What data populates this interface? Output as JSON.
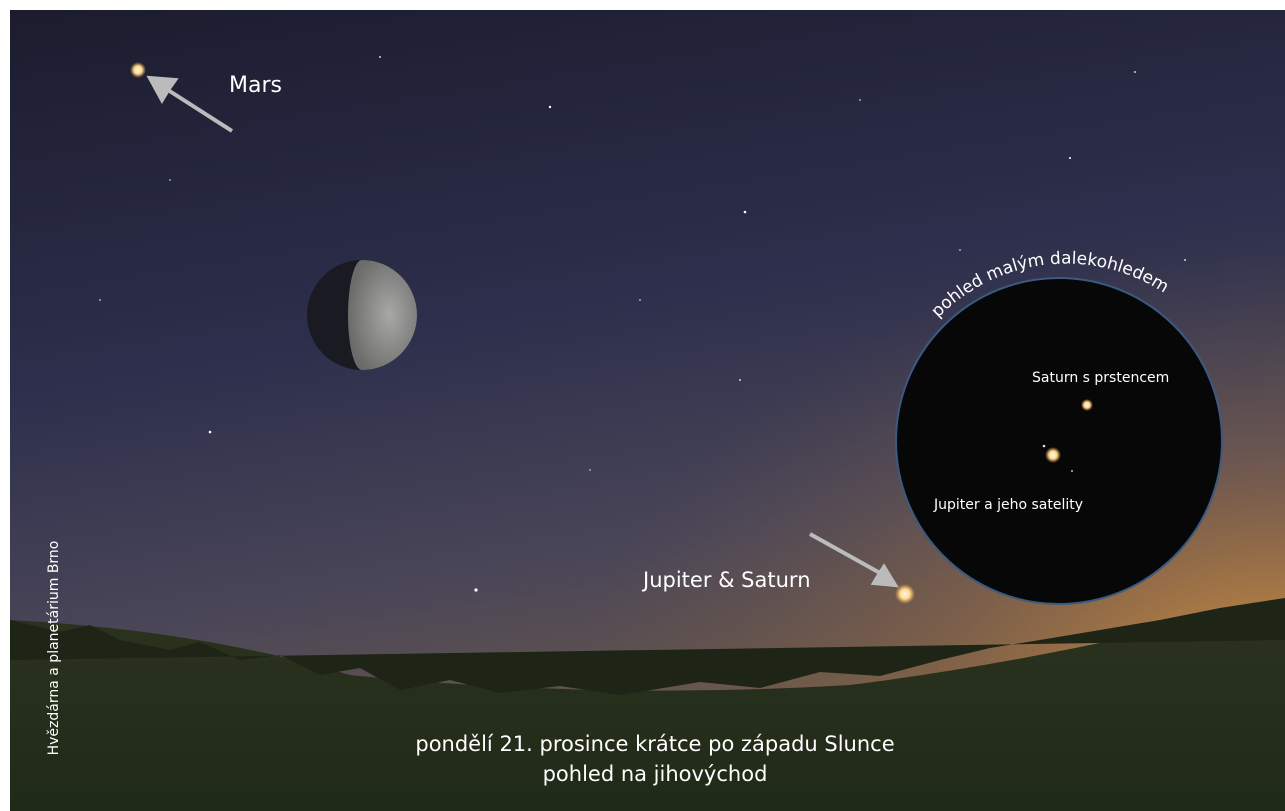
{
  "labels": {
    "mars": "Mars",
    "jupiter_saturn": "Jupiter & Saturn"
  },
  "telescope": {
    "title": "pohled malým dalekohledem",
    "saturn": "Saturn s prstencem",
    "jupiter": "Jupiter a jeho satelity"
  },
  "credit": "Hvězdárna a planetárium Brno",
  "caption": {
    "line1": "pondělí 21. prosince krátce po západu Slunce",
    "line2": "pohled na jihovýchod"
  }
}
